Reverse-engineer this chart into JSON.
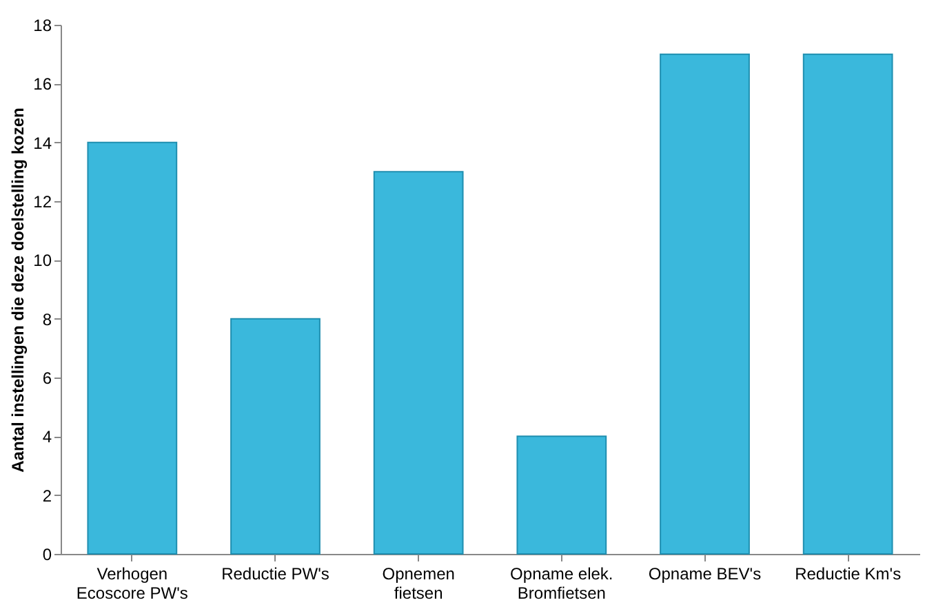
{
  "chart_data": {
    "type": "bar",
    "ylabel": "Aantal instellingen die deze doelstelling kozen",
    "categories": [
      "Verhogen\nEcoscore PW's",
      "Reductie PW's",
      "Opnemen\nfietsen",
      "Opname elek.\nBromfietsen",
      "Opname BEV's",
      "Reductie Km's"
    ],
    "values": [
      14,
      8,
      13,
      4,
      17,
      17
    ],
    "color": "#3ab8dc",
    "ylim": [
      0,
      18
    ],
    "yticks": [
      0,
      2,
      4,
      6,
      8,
      10,
      12,
      14,
      16,
      18
    ],
    "grid": false
  }
}
